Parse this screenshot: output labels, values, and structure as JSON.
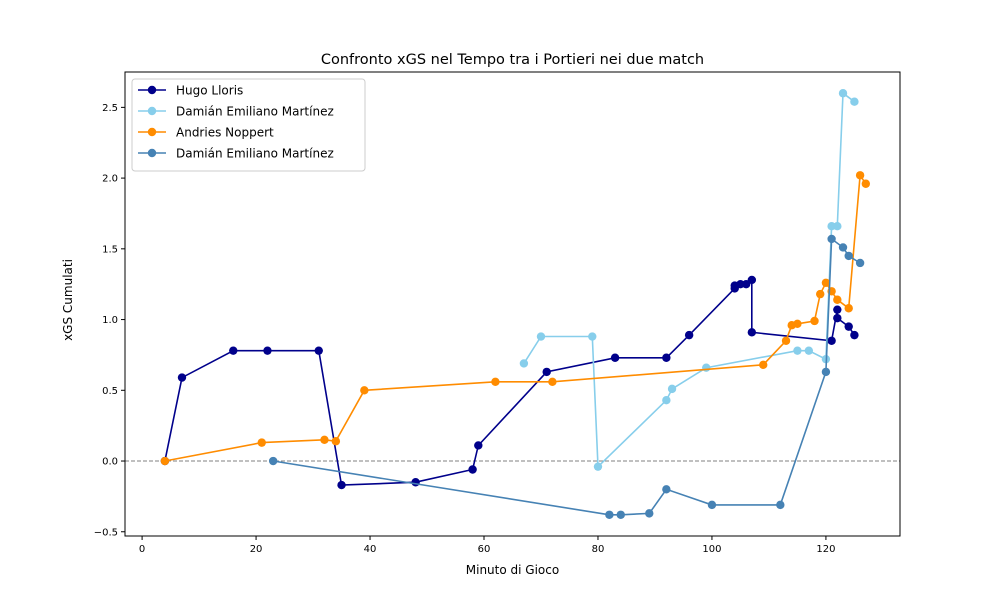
{
  "chart_data": {
    "type": "line",
    "title": "Confronto xGS nel Tempo tra i Portieri nei due match",
    "xlabel": "Minuto di Gioco",
    "ylabel": "xGS Cumulati",
    "xlim": [
      -3,
      133
    ],
    "ylim": [
      -0.53,
      2.75
    ],
    "xticks": [
      0,
      20,
      40,
      60,
      80,
      100,
      120
    ],
    "yticks": [
      -0.5,
      0.0,
      0.5,
      1.0,
      1.5,
      2.0,
      2.5
    ],
    "ytick_labels": [
      "−0.5",
      "0.0",
      "0.5",
      "1.0",
      "1.5",
      "2.0",
      "2.5"
    ],
    "grid": false,
    "legend_position": "top-left",
    "reference_line": {
      "y": 0,
      "style": "dashed",
      "color": "#808080"
    },
    "series": [
      {
        "name": "Hugo Lloris",
        "color": "#00008b",
        "x": [
          4,
          7,
          16,
          22,
          31,
          35,
          48,
          58,
          59,
          71,
          83,
          92,
          96,
          104,
          104,
          105,
          106,
          107,
          107,
          121,
          122,
          122,
          124,
          125
        ],
        "y": [
          0.0,
          0.59,
          0.78,
          0.78,
          0.78,
          -0.17,
          -0.15,
          -0.06,
          0.11,
          0.63,
          0.73,
          0.73,
          0.89,
          1.22,
          1.24,
          1.25,
          1.25,
          1.28,
          0.91,
          0.85,
          1.07,
          1.01,
          0.95,
          0.89
        ]
      },
      {
        "name": "Damián Emiliano Martínez",
        "color": "#87ceeb",
        "x": [
          67,
          70,
          79,
          80,
          92,
          93,
          99,
          115,
          117,
          120,
          121,
          122,
          123,
          125
        ],
        "y": [
          0.69,
          0.88,
          0.88,
          -0.04,
          0.43,
          0.51,
          0.66,
          0.78,
          0.78,
          0.72,
          1.66,
          1.66,
          2.6,
          2.54
        ]
      },
      {
        "name": "Andries Noppert",
        "color": "#ff8c00",
        "x": [
          4,
          21,
          32,
          34,
          39,
          62,
          72,
          109,
          113,
          114,
          115,
          118,
          119,
          120,
          121,
          122,
          124,
          126,
          127
        ],
        "y": [
          0.0,
          0.13,
          0.15,
          0.14,
          0.5,
          0.56,
          0.56,
          0.68,
          0.85,
          0.96,
          0.97,
          0.99,
          1.18,
          1.26,
          1.2,
          1.14,
          1.08,
          2.02,
          1.96
        ]
      },
      {
        "name": "Damián Emiliano Martínez",
        "color": "#4682b4",
        "x": [
          23,
          82,
          84,
          89,
          92,
          100,
          112,
          120,
          121,
          123,
          124,
          126
        ],
        "y": [
          0.0,
          -0.38,
          -0.38,
          -0.37,
          -0.2,
          -0.31,
          -0.31,
          0.63,
          1.57,
          1.51,
          1.45,
          1.4
        ]
      }
    ]
  }
}
